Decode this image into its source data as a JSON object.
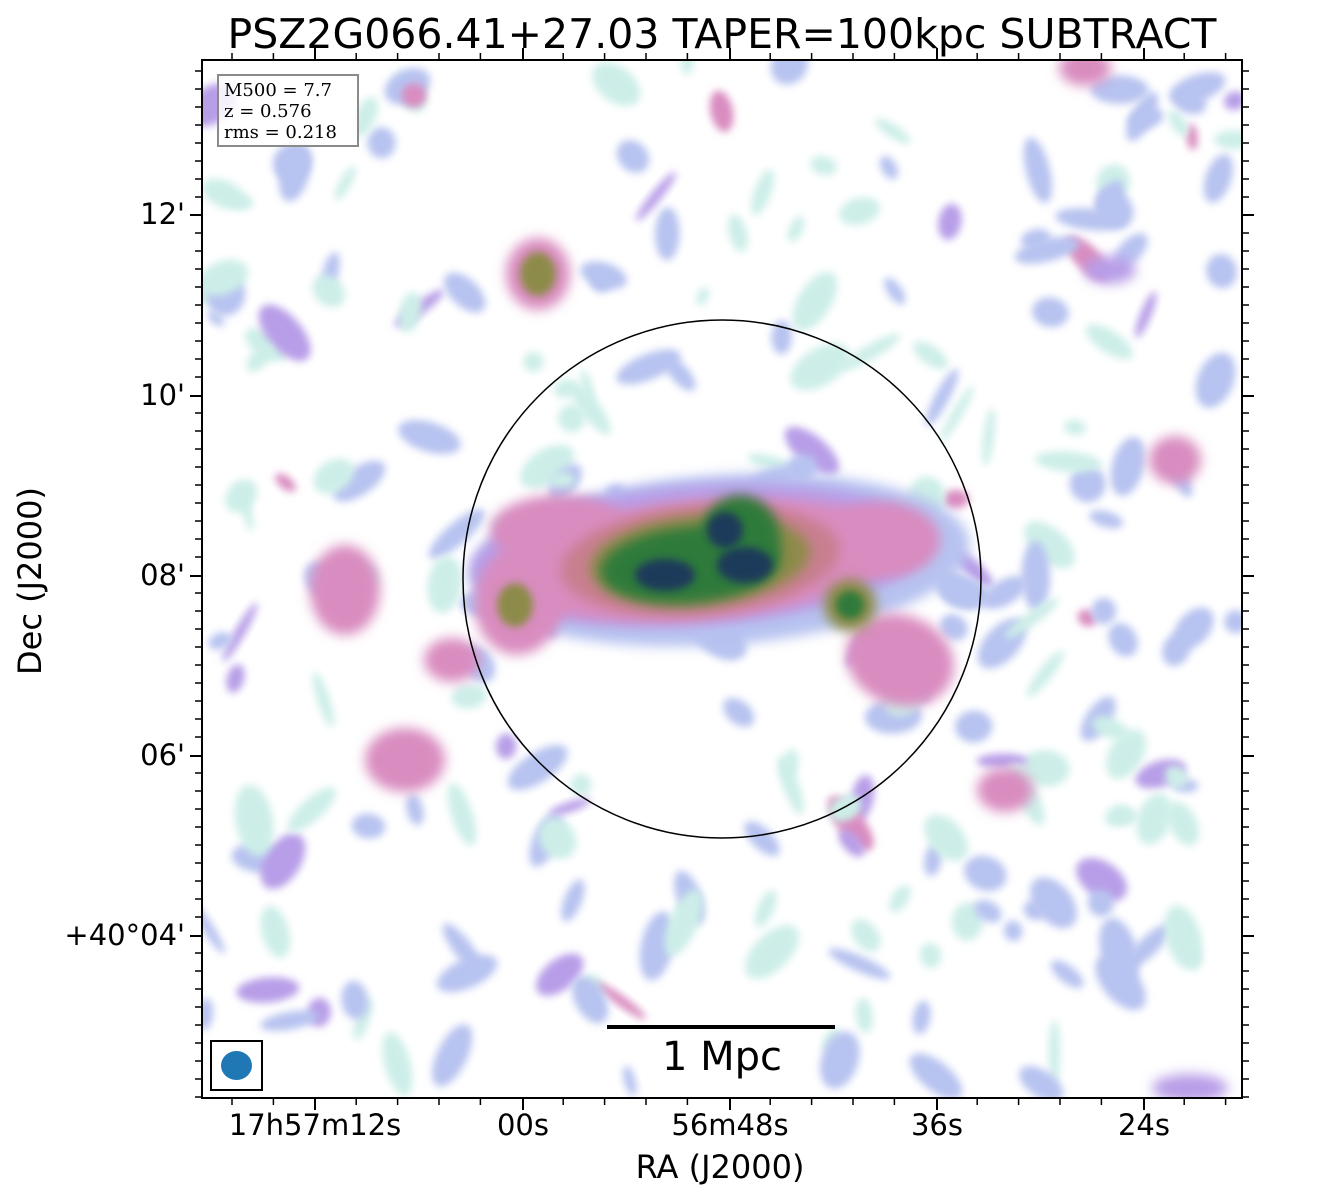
{
  "title": "PSZ2G066.41+27.03 TAPER=100kpc SUBTRACT",
  "info": {
    "m500": "M500 = 7.7",
    "z": "z = 0.576",
    "rms": "rms = 0.218"
  },
  "axes": {
    "xlabel": "RA (J2000)",
    "ylabel": "Dec (J2000)",
    "xticks": [
      "17h57m12s",
      "00s",
      "56m48s",
      "36s",
      "24s"
    ],
    "yticks": [
      "12'",
      "10'",
      "08'",
      "06'",
      "+40°04'"
    ]
  },
  "scalebar": {
    "label": "1 Mpc"
  },
  "colors": {
    "frame": "#000000",
    "beam": "#1f77b4",
    "colormap": [
      "#ffffff",
      "#cdeee8",
      "#b7c3f0",
      "#b89ee8",
      "#d98cc0",
      "#c87f8f",
      "#8d8b4a",
      "#2f7a3a",
      "#1c3a5a"
    ]
  }
}
